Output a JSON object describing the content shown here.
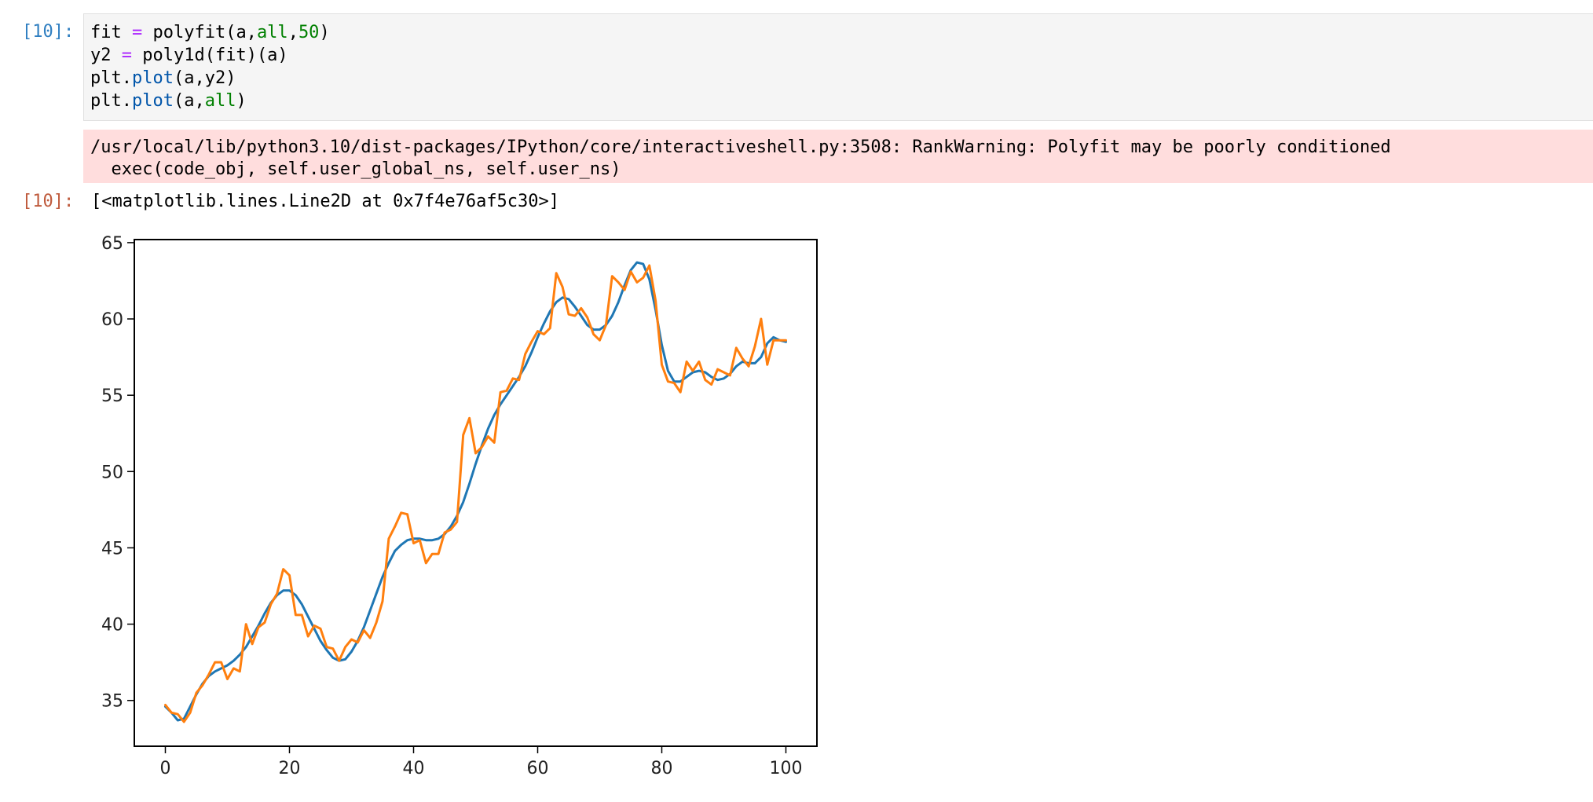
{
  "input_cell": {
    "prompt": "[10]:",
    "lines": [
      [
        [
          "fit ",
          "plain"
        ],
        [
          "=",
          "op"
        ],
        [
          " polyfit(a,",
          "plain"
        ],
        [
          "all",
          "kw"
        ],
        [
          ",",
          "plain"
        ],
        [
          "50",
          "num"
        ],
        [
          ")",
          "plain"
        ]
      ],
      [
        [
          "y2 ",
          "plain"
        ],
        [
          "=",
          "op"
        ],
        [
          " poly1d(fit)(a)",
          "plain"
        ]
      ],
      [
        [
          "plt.",
          "plain"
        ],
        [
          "plot",
          "fn"
        ],
        [
          "(a,y2)",
          "plain"
        ]
      ],
      [
        [
          "plt.",
          "plain"
        ],
        [
          "plot",
          "fn"
        ],
        [
          "(a,",
          "plain"
        ],
        [
          "all",
          "kw"
        ],
        [
          ")",
          "plain"
        ]
      ]
    ]
  },
  "stderr": {
    "line1": "/usr/local/lib/python3.10/dist-packages/IPython/core/interactiveshell.py:3508: RankWarning: Polyfit may be poorly conditioned",
    "line2": "  exec(code_obj, self.user_global_ns, self.user_ns)"
  },
  "output_cell": {
    "prompt": "[10]:",
    "text": "[<matplotlib.lines.Line2D at 0x7f4e76af5c30>]"
  },
  "chart_data": {
    "type": "line",
    "title": "",
    "xlabel": "",
    "ylabel": "",
    "xlim": [
      -5,
      105
    ],
    "ylim": [
      32,
      65.2
    ],
    "xticks": [
      0,
      20,
      40,
      60,
      80,
      100
    ],
    "yticks": [
      35,
      40,
      45,
      50,
      55,
      60,
      65
    ],
    "grid": false,
    "colors": [
      "#1f77b4",
      "#ff7f0e"
    ],
    "series": [
      {
        "x": [
          0,
          1,
          2,
          3,
          4,
          5,
          6,
          7,
          8,
          9,
          10,
          11,
          12,
          13,
          14,
          15,
          16,
          17,
          18,
          19,
          20,
          21,
          22,
          23,
          24,
          25,
          26,
          27,
          28,
          29,
          30,
          31,
          32,
          33,
          34,
          35,
          36,
          37,
          38,
          39,
          40,
          41,
          42,
          43,
          44,
          45,
          46,
          47,
          48,
          49,
          50,
          51,
          52,
          53,
          54,
          55,
          56,
          57,
          58,
          59,
          60,
          61,
          62,
          63,
          64,
          65,
          66,
          67,
          68,
          69,
          70,
          71,
          72,
          73,
          74,
          75,
          76,
          77,
          78,
          79,
          80,
          81,
          82,
          83,
          84,
          85,
          86,
          87,
          88,
          89,
          90,
          91,
          92,
          93,
          94,
          95,
          96,
          97,
          98,
          99,
          100
        ],
        "values": [
          34.6,
          34.2,
          33.7,
          33.8,
          34.6,
          35.4,
          36.1,
          36.6,
          36.9,
          37.1,
          37.3,
          37.6,
          38.0,
          38.5,
          39.2,
          39.9,
          40.7,
          41.4,
          41.9,
          42.2,
          42.2,
          41.9,
          41.3,
          40.5,
          39.7,
          38.9,
          38.3,
          37.8,
          37.6,
          37.7,
          38.2,
          38.9,
          39.8,
          40.9,
          42.0,
          43.1,
          44.0,
          44.8,
          45.2,
          45.5,
          45.6,
          45.6,
          45.5,
          45.5,
          45.6,
          45.9,
          46.4,
          47.1,
          48.0,
          49.2,
          50.5,
          51.7,
          52.8,
          53.7,
          54.4,
          55.0,
          55.6,
          56.2,
          56.9,
          57.8,
          58.8,
          59.7,
          60.5,
          61.1,
          61.4,
          61.3,
          60.8,
          60.2,
          59.6,
          59.3,
          59.3,
          59.6,
          60.2,
          61.1,
          62.2,
          63.2,
          63.7,
          63.6,
          62.6,
          60.6,
          58.3,
          56.6,
          55.9,
          55.9,
          56.2,
          56.5,
          56.6,
          56.5,
          56.2,
          56.0,
          56.1,
          56.4,
          56.9,
          57.2,
          57.1,
          57.1,
          57.5,
          58.4,
          58.8,
          58.6,
          58.5
        ]
      },
      {
        "x": [
          0,
          1,
          2,
          3,
          4,
          5,
          6,
          7,
          8,
          9,
          10,
          11,
          12,
          13,
          14,
          15,
          16,
          17,
          18,
          19,
          20,
          21,
          22,
          23,
          24,
          25,
          26,
          27,
          28,
          29,
          30,
          31,
          32,
          33,
          34,
          35,
          36,
          37,
          38,
          39,
          40,
          41,
          42,
          43,
          44,
          45,
          46,
          47,
          48,
          49,
          50,
          51,
          52,
          53,
          54,
          55,
          56,
          57,
          58,
          59,
          60,
          61,
          62,
          63,
          64,
          65,
          66,
          67,
          68,
          69,
          70,
          71,
          72,
          73,
          74,
          75,
          76,
          77,
          78,
          79,
          80,
          81,
          82,
          83,
          84,
          85,
          86,
          87,
          88,
          89,
          90,
          91,
          92,
          93,
          94,
          95,
          96,
          97,
          98,
          99,
          100
        ],
        "values": [
          34.7,
          34.2,
          34.1,
          33.6,
          34.2,
          35.5,
          36.0,
          36.7,
          37.5,
          37.5,
          36.4,
          37.1,
          36.9,
          40.0,
          38.7,
          39.8,
          40.1,
          41.3,
          42.0,
          43.6,
          43.2,
          40.6,
          40.6,
          39.2,
          39.9,
          39.7,
          38.5,
          38.4,
          37.6,
          38.5,
          39.0,
          38.8,
          39.6,
          39.1,
          40.1,
          41.5,
          45.6,
          46.4,
          47.3,
          47.2,
          45.3,
          45.5,
          44.0,
          44.6,
          44.6,
          46.0,
          46.2,
          46.7,
          52.4,
          53.5,
          51.2,
          51.6,
          52.3,
          51.9,
          55.2,
          55.3,
          56.1,
          56.0,
          57.7,
          58.5,
          59.2,
          59.0,
          59.4,
          63.0,
          62.1,
          60.3,
          60.2,
          60.7,
          60.1,
          59.0,
          58.6,
          59.6,
          62.8,
          62.4,
          61.9,
          63.1,
          62.4,
          62.7,
          63.5,
          61.2,
          57.0,
          55.9,
          55.8,
          55.2,
          57.2,
          56.6,
          57.2,
          56.0,
          55.7,
          56.7,
          56.5,
          56.3,
          58.1,
          57.4,
          56.9,
          58.2,
          60.0,
          57.0,
          58.6,
          58.6,
          58.6
        ]
      }
    ]
  }
}
